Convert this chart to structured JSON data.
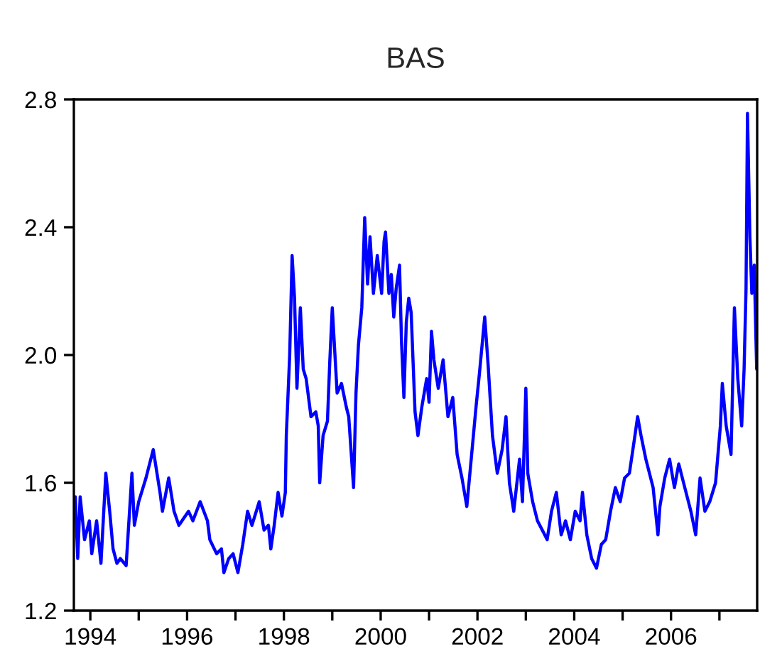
{
  "chart_data": {
    "type": "line",
    "title": "BAS",
    "x": [
      1993.69,
      1993.74,
      1993.79,
      1993.88,
      1993.98,
      1994.03,
      1994.13,
      1994.22,
      1994.32,
      1994.4,
      1994.47,
      1994.55,
      1994.62,
      1994.74,
      1994.86,
      1994.91,
      1995.0,
      1995.15,
      1995.3,
      1995.44,
      1995.49,
      1995.62,
      1995.73,
      1995.83,
      1996.03,
      1996.12,
      1996.27,
      1996.42,
      1996.47,
      1996.61,
      1996.71,
      1996.76,
      1996.86,
      1996.95,
      1997.05,
      1997.15,
      1997.25,
      1997.34,
      1997.49,
      1997.59,
      1997.68,
      1997.73,
      1997.8,
      1997.88,
      1997.96,
      1998.03,
      1998.05,
      1998.12,
      1998.17,
      1998.22,
      1998.27,
      1998.34,
      1998.4,
      1998.46,
      1998.56,
      1998.66,
      1998.71,
      1998.74,
      1998.81,
      1998.9,
      1998.95,
      1999.0,
      1999.1,
      1999.19,
      1999.29,
      1999.34,
      1999.44,
      1999.49,
      1999.54,
      1999.61,
      1999.67,
      1999.73,
      1999.78,
      1999.85,
      1999.93,
      2000.02,
      2000.07,
      2000.1,
      2000.17,
      2000.22,
      2000.27,
      2000.32,
      2000.39,
      2000.43,
      2000.48,
      2000.53,
      2000.58,
      2000.63,
      2000.71,
      2000.77,
      2000.85,
      2000.95,
      2001.0,
      2001.05,
      2001.1,
      2001.19,
      2001.29,
      2001.34,
      2001.39,
      2001.49,
      2001.58,
      2001.68,
      2001.78,
      2001.88,
      2001.97,
      2002.04,
      2002.15,
      2002.22,
      2002.31,
      2002.41,
      2002.51,
      2002.59,
      2002.66,
      2002.75,
      2002.87,
      2002.93,
      2003.0,
      2003.04,
      2003.14,
      2003.24,
      2003.34,
      2003.44,
      2003.53,
      2003.63,
      2003.73,
      2003.82,
      2003.92,
      2004.02,
      2004.12,
      2004.17,
      2004.26,
      2004.36,
      2004.46,
      2004.56,
      2004.65,
      2004.75,
      2004.85,
      2004.95,
      2005.04,
      2005.14,
      2005.24,
      2005.31,
      2005.38,
      2005.48,
      2005.63,
      2005.73,
      2005.77,
      2005.87,
      2005.97,
      2006.07,
      2006.16,
      2006.31,
      2006.41,
      2006.51,
      2006.6,
      2006.7,
      2006.8,
      2006.92,
      2007.02,
      2007.06,
      2007.14,
      2007.24,
      2007.31,
      2007.38,
      2007.46,
      2007.51,
      2007.55,
      2007.58,
      2007.63,
      2007.67,
      2007.72,
      2007.77
    ],
    "series": [
      {
        "color": "#0000ff",
        "values": [
          1.556,
          1.363,
          1.556,
          1.422,
          1.481,
          1.378,
          1.481,
          1.348,
          1.63,
          1.511,
          1.393,
          1.348,
          1.363,
          1.341,
          1.63,
          1.467,
          1.541,
          1.615,
          1.704,
          1.57,
          1.511,
          1.615,
          1.511,
          1.467,
          1.511,
          1.481,
          1.541,
          1.481,
          1.422,
          1.378,
          1.393,
          1.319,
          1.363,
          1.378,
          1.319,
          1.407,
          1.511,
          1.467,
          1.541,
          1.452,
          1.467,
          1.393,
          1.467,
          1.57,
          1.496,
          1.57,
          1.748,
          2.0,
          2.311,
          2.178,
          1.896,
          2.148,
          1.956,
          1.926,
          1.807,
          1.822,
          1.778,
          1.6,
          1.748,
          1.793,
          1.985,
          2.148,
          1.881,
          1.911,
          1.837,
          1.807,
          1.585,
          1.881,
          2.03,
          2.148,
          2.43,
          2.222,
          2.37,
          2.193,
          2.311,
          2.193,
          2.356,
          2.385,
          2.193,
          2.252,
          2.119,
          2.207,
          2.281,
          2.044,
          1.867,
          2.104,
          2.178,
          2.133,
          1.822,
          1.748,
          1.837,
          1.926,
          1.852,
          2.074,
          1.985,
          1.896,
          1.985,
          1.896,
          1.807,
          1.867,
          1.689,
          1.615,
          1.526,
          1.689,
          1.837,
          1.941,
          2.119,
          1.97,
          1.748,
          1.63,
          1.704,
          1.807,
          1.6,
          1.511,
          1.674,
          1.541,
          1.896,
          1.63,
          1.541,
          1.481,
          1.452,
          1.422,
          1.511,
          1.57,
          1.437,
          1.481,
          1.422,
          1.511,
          1.481,
          1.57,
          1.437,
          1.363,
          1.333,
          1.407,
          1.422,
          1.511,
          1.585,
          1.541,
          1.615,
          1.63,
          1.733,
          1.807,
          1.748,
          1.674,
          1.585,
          1.437,
          1.526,
          1.615,
          1.674,
          1.585,
          1.659,
          1.57,
          1.511,
          1.437,
          1.615,
          1.511,
          1.541,
          1.6,
          1.778,
          1.911,
          1.778,
          1.689,
          2.148,
          1.926,
          1.778,
          1.956,
          2.207,
          2.756,
          2.37,
          2.193,
          2.281,
          1.956
        ]
      }
    ],
    "xlim": [
      1993.66,
      2007.78
    ],
    "xticks": [
      {
        "value": 1994,
        "label": "1994"
      },
      {
        "value": 1995,
        "label": null
      },
      {
        "value": 1996,
        "label": "1996"
      },
      {
        "value": 1997,
        "label": null
      },
      {
        "value": 1998,
        "label": "1998"
      },
      {
        "value": 1999,
        "label": null
      },
      {
        "value": 2000,
        "label": "2000"
      },
      {
        "value": 2001,
        "label": null
      },
      {
        "value": 2002,
        "label": "2002"
      },
      {
        "value": 2003,
        "label": null
      },
      {
        "value": 2004,
        "label": "2004"
      },
      {
        "value": 2005,
        "label": null
      },
      {
        "value": 2006,
        "label": "2006"
      },
      {
        "value": 2007,
        "label": null
      }
    ],
    "ylim": [
      1.2,
      2.8
    ],
    "yticks": [
      1.2,
      1.6,
      {
        "value": 2,
        "label": "2.0"
      },
      2.4,
      2.8
    ],
    "grid": false,
    "legend": false,
    "marker": "none",
    "line_style": "solid"
  }
}
